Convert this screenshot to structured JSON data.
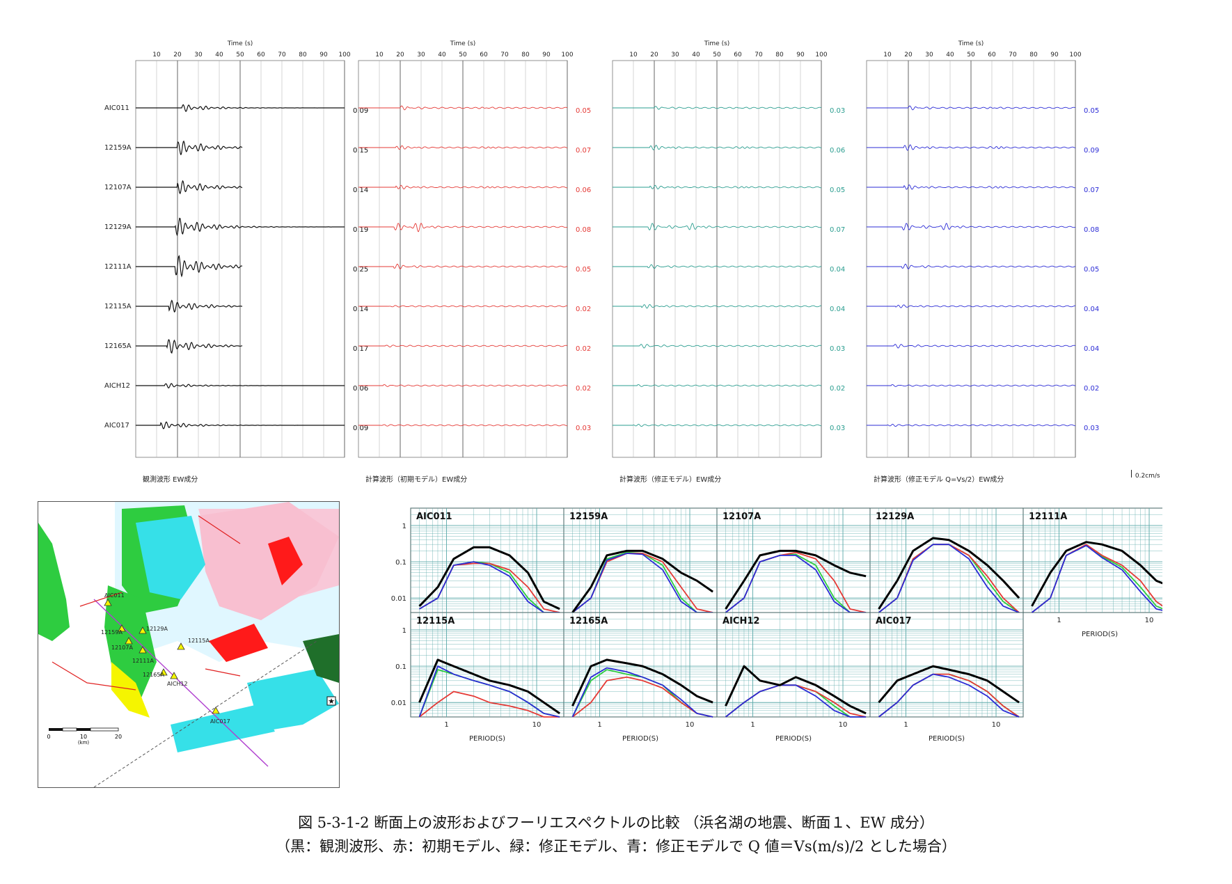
{
  "waveform_section": {
    "time_axis": {
      "title": "Time (s)",
      "ticks": [
        10,
        20,
        30,
        40,
        50,
        60,
        70,
        80,
        90,
        100
      ],
      "range": [
        0,
        100
      ]
    },
    "stations": [
      "AIC011",
      "12159A",
      "12107A",
      "12129A",
      "12111A",
      "12115A",
      "12165A",
      "AICH12",
      "AIC017"
    ],
    "panels": [
      {
        "caption": "観測波形 EW成分",
        "color": "#111111",
        "amplitudes": [
          "0.09",
          "0.15",
          "0.14",
          "0.19",
          "0.25",
          "0.14",
          "0.17",
          "0.06",
          "0.09"
        ],
        "amp_color": "#111111"
      },
      {
        "caption": "計算波形（初期モデル）EW成分",
        "color": "#e53935",
        "amplitudes": [
          "0.05",
          "0.07",
          "0.06",
          "0.08",
          "0.05",
          "0.02",
          "0.02",
          "0.02",
          "0.03"
        ],
        "amp_color": "#e53935"
      },
      {
        "caption": "計算波形（修正モデル）EW成分",
        "color": "#2a9d8f",
        "amplitudes": [
          "0.03",
          "0.06",
          "0.05",
          "0.07",
          "0.04",
          "0.04",
          "0.03",
          "0.02",
          "0.03"
        ],
        "amp_color": "#2a9d8f"
      },
      {
        "caption": "計算波形（修正モデル Q=Vs/2）EW成分",
        "color": "#2b2bd6",
        "amplitudes": [
          "0.05",
          "0.09",
          "0.07",
          "0.08",
          "0.05",
          "0.04",
          "0.04",
          "0.02",
          "0.03"
        ],
        "amp_color": "#2b2bd6"
      }
    ],
    "scale_label": "0.2cm/s"
  },
  "map": {
    "station_labels": [
      "AIC011",
      "12159A",
      "12129A",
      "12107A",
      "12111A",
      "12115A",
      "12165A",
      "AICH12",
      "AIC017"
    ],
    "scale": {
      "ticks": [
        "0",
        "10",
        "20"
      ],
      "unit": "(km)"
    }
  },
  "chart_data": {
    "type": "line",
    "title": "",
    "xlabel": "PERIOD(S)",
    "ylabel": "",
    "xscale": "log",
    "yscale": "log",
    "x_ticks": [
      "1",
      "10"
    ],
    "y_ticks": [
      "1",
      "0.1",
      "0.01"
    ],
    "legend": [],
    "series_colors": {
      "observed": "#000000",
      "initial": "#e53935",
      "modified": "#2ecc40",
      "modified_q": "#2b2bd6"
    },
    "panels": [
      {
        "station": "AIC011",
        "observed": [
          0.006,
          0.02,
          0.12,
          0.25,
          0.25,
          0.15,
          0.05,
          0.008,
          0.005
        ],
        "initial": [
          0.005,
          0.01,
          0.08,
          0.09,
          0.09,
          0.06,
          0.02,
          0.005,
          0.004
        ],
        "modified": [
          0.005,
          0.01,
          0.08,
          0.1,
          0.09,
          0.05,
          0.01,
          0.004,
          0.004
        ],
        "modified_q": [
          0.005,
          0.01,
          0.08,
          0.1,
          0.08,
          0.04,
          0.008,
          0.004,
          0.004
        ]
      },
      {
        "station": "12159A",
        "observed": [
          0.004,
          0.02,
          0.15,
          0.2,
          0.2,
          0.12,
          0.05,
          0.03,
          0.015
        ],
        "initial": [
          0.004,
          0.01,
          0.1,
          0.17,
          0.17,
          0.1,
          0.02,
          0.005,
          0.004
        ],
        "modified": [
          0.004,
          0.01,
          0.12,
          0.18,
          0.17,
          0.08,
          0.01,
          0.004,
          0.004
        ],
        "modified_q": [
          0.004,
          0.01,
          0.11,
          0.17,
          0.16,
          0.06,
          0.008,
          0.004,
          0.004
        ]
      },
      {
        "station": "12107A",
        "observed": [
          0.005,
          0.03,
          0.15,
          0.2,
          0.2,
          0.15,
          0.08,
          0.05,
          0.04
        ],
        "initial": [
          0.004,
          0.01,
          0.1,
          0.15,
          0.18,
          0.12,
          0.03,
          0.005,
          0.004
        ],
        "modified": [
          0.004,
          0.01,
          0.1,
          0.15,
          0.16,
          0.08,
          0.01,
          0.004,
          0.004
        ],
        "modified_q": [
          0.004,
          0.01,
          0.1,
          0.15,
          0.15,
          0.06,
          0.008,
          0.004,
          0.004
        ]
      },
      {
        "station": "12129A",
        "observed": [
          0.005,
          0.03,
          0.2,
          0.45,
          0.4,
          0.2,
          0.08,
          0.03,
          0.01
        ],
        "initial": [
          0.004,
          0.01,
          0.12,
          0.3,
          0.3,
          0.15,
          0.04,
          0.01,
          0.004
        ],
        "modified": [
          0.004,
          0.01,
          0.12,
          0.3,
          0.3,
          0.15,
          0.03,
          0.008,
          0.004
        ],
        "modified_q": [
          0.004,
          0.01,
          0.11,
          0.3,
          0.3,
          0.12,
          0.02,
          0.006,
          0.004
        ]
      },
      {
        "station": "12111A",
        "observed": [
          0.006,
          0.05,
          0.2,
          0.35,
          0.3,
          0.2,
          0.08,
          0.03,
          0.02
        ],
        "initial": [
          0.004,
          0.01,
          0.15,
          0.3,
          0.15,
          0.08,
          0.03,
          0.008,
          0.004
        ],
        "modified": [
          0.004,
          0.01,
          0.15,
          0.28,
          0.14,
          0.07,
          0.02,
          0.006,
          0.004
        ],
        "modified_q": [
          0.004,
          0.01,
          0.15,
          0.28,
          0.13,
          0.06,
          0.015,
          0.005,
          0.004
        ]
      },
      {
        "station": "12115A",
        "observed": [
          0.01,
          0.15,
          0.1,
          0.06,
          0.04,
          0.03,
          0.02,
          0.01,
          0.005
        ],
        "initial": [
          0.004,
          0.01,
          0.02,
          0.015,
          0.01,
          0.008,
          0.006,
          0.004,
          0.004
        ],
        "modified": [
          0.004,
          0.08,
          0.06,
          0.04,
          0.03,
          0.02,
          0.01,
          0.005,
          0.004
        ],
        "modified_q": [
          0.004,
          0.1,
          0.06,
          0.04,
          0.03,
          0.02,
          0.01,
          0.005,
          0.004
        ]
      },
      {
        "station": "12165A",
        "observed": [
          0.008,
          0.1,
          0.15,
          0.12,
          0.1,
          0.06,
          0.03,
          0.015,
          0.01
        ],
        "initial": [
          0.004,
          0.01,
          0.04,
          0.05,
          0.04,
          0.025,
          0.01,
          0.005,
          0.004
        ],
        "modified": [
          0.004,
          0.04,
          0.08,
          0.06,
          0.05,
          0.03,
          0.01,
          0.005,
          0.004
        ],
        "modified_q": [
          0.004,
          0.05,
          0.09,
          0.07,
          0.05,
          0.03,
          0.012,
          0.005,
          0.004
        ]
      },
      {
        "station": "AICH12",
        "observed": [
          0.008,
          0.1,
          0.04,
          0.03,
          0.05,
          0.03,
          0.015,
          0.008,
          0.005
        ],
        "initial": [
          0.004,
          0.01,
          0.02,
          0.03,
          0.03,
          0.02,
          0.01,
          0.005,
          0.004
        ],
        "modified": [
          0.004,
          0.01,
          0.02,
          0.03,
          0.03,
          0.02,
          0.008,
          0.004,
          0.004
        ],
        "modified_q": [
          0.004,
          0.01,
          0.02,
          0.03,
          0.03,
          0.015,
          0.006,
          0.004,
          0.004
        ]
      },
      {
        "station": "AIC017",
        "observed": [
          0.01,
          0.04,
          0.06,
          0.1,
          0.08,
          0.06,
          0.04,
          0.02,
          0.01
        ],
        "initial": [
          0.004,
          0.01,
          0.03,
          0.06,
          0.06,
          0.04,
          0.02,
          0.008,
          0.004
        ],
        "modified": [
          0.004,
          0.01,
          0.03,
          0.06,
          0.06,
          0.04,
          0.02,
          0.008,
          0.004
        ],
        "modified_q": [
          0.004,
          0.01,
          0.03,
          0.06,
          0.05,
          0.03,
          0.015,
          0.006,
          0.004
        ]
      }
    ],
    "period_samples": [
      0.5,
      0.8,
      1.2,
      2,
      3,
      5,
      8,
      12,
      18
    ]
  },
  "caption": {
    "line1": "図 5-3-1-2 断面上の波形およびフーリエスペクトルの比較 （浜名湖の地震、断面１、EW 成分）",
    "line2": "（黒：観測波形、赤：初期モデル、緑：修正モデル、青：修正モデルで Q 値＝Vs(m/s)/2 とした場合）"
  }
}
